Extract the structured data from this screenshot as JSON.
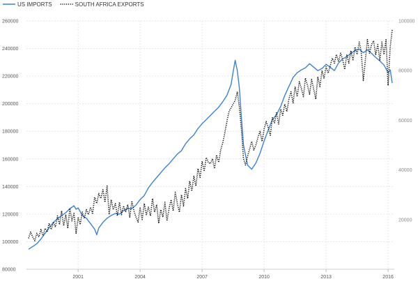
{
  "chart_data": {
    "type": "line",
    "legend_position": "top-left",
    "grid": true,
    "colors": {
      "us_imports": "#3b82d6",
      "sa_exports": "#111111",
      "grid": "#e6e6e6"
    },
    "x_range": [
      1998.5,
      2016.3
    ],
    "x_ticks": [
      {
        "label": "2001",
        "x": 2001
      },
      {
        "label": "2004",
        "x": 2004
      },
      {
        "label": "2007",
        "x": 2007
      },
      {
        "label": "2010",
        "x": 2010
      },
      {
        "label": "2013",
        "x": 2013
      },
      {
        "label": "2016",
        "x": 2016
      }
    ],
    "y_left": {
      "range": [
        80000,
        260000
      ],
      "ticks": [
        80000,
        100000,
        120000,
        140000,
        160000,
        180000,
        200000,
        220000,
        240000,
        260000
      ]
    },
    "y_right": {
      "range": [
        0,
        100000
      ],
      "ticks": [
        20000,
        40000,
        60000,
        80000,
        100000
      ]
    },
    "series": [
      {
        "name": "US IMPORTS",
        "axis": "left",
        "style": "solid",
        "points": [
          [
            1998.6,
            94500
          ],
          [
            1998.8,
            96500
          ],
          [
            1999.0,
            98500
          ],
          [
            1999.2,
            102000
          ],
          [
            1999.4,
            106000
          ],
          [
            1999.6,
            110000
          ],
          [
            1999.8,
            114000
          ],
          [
            2000.0,
            116500
          ],
          [
            2000.2,
            119000
          ],
          [
            2000.4,
            121000
          ],
          [
            2000.6,
            124000
          ],
          [
            2000.8,
            126000
          ],
          [
            2000.9,
            123500
          ],
          [
            2001.0,
            124500
          ],
          [
            2001.2,
            119000
          ],
          [
            2001.4,
            117000
          ],
          [
            2001.6,
            113000
          ],
          [
            2001.8,
            109000
          ],
          [
            2001.9,
            105000
          ],
          [
            2002.0,
            110000
          ],
          [
            2002.2,
            114000
          ],
          [
            2002.4,
            117000
          ],
          [
            2002.6,
            119000
          ],
          [
            2002.8,
            120500
          ],
          [
            2003.0,
            120000
          ],
          [
            2003.2,
            122500
          ],
          [
            2003.4,
            124000
          ],
          [
            2003.6,
            124000
          ],
          [
            2003.8,
            126500
          ],
          [
            2004.0,
            130500
          ],
          [
            2004.2,
            133500
          ],
          [
            2004.4,
            139000
          ],
          [
            2004.6,
            143000
          ],
          [
            2004.8,
            146500
          ],
          [
            2005.0,
            150000
          ],
          [
            2005.2,
            153500
          ],
          [
            2005.4,
            156500
          ],
          [
            2005.6,
            160000
          ],
          [
            2005.8,
            163500
          ],
          [
            2006.0,
            166000
          ],
          [
            2006.2,
            171000
          ],
          [
            2006.4,
            174500
          ],
          [
            2006.6,
            177500
          ],
          [
            2006.8,
            182000
          ],
          [
            2007.0,
            185500
          ],
          [
            2007.2,
            188500
          ],
          [
            2007.4,
            191500
          ],
          [
            2007.6,
            194500
          ],
          [
            2007.8,
            197500
          ],
          [
            2008.0,
            201500
          ],
          [
            2008.2,
            206000
          ],
          [
            2008.4,
            214000
          ],
          [
            2008.5,
            223000
          ],
          [
            2008.6,
            231500
          ],
          [
            2008.7,
            224000
          ],
          [
            2008.8,
            212000
          ],
          [
            2008.9,
            190000
          ],
          [
            2009.0,
            170000
          ],
          [
            2009.2,
            155500
          ],
          [
            2009.4,
            152500
          ],
          [
            2009.6,
            157000
          ],
          [
            2009.8,
            164000
          ],
          [
            2010.0,
            173000
          ],
          [
            2010.2,
            181000
          ],
          [
            2010.4,
            188500
          ],
          [
            2010.6,
            192000
          ],
          [
            2010.8,
            198000
          ],
          [
            2011.0,
            206000
          ],
          [
            2011.2,
            212500
          ],
          [
            2011.4,
            219000
          ],
          [
            2011.6,
            222500
          ],
          [
            2011.8,
            224500
          ],
          [
            2012.0,
            226000
          ],
          [
            2012.2,
            229000
          ],
          [
            2012.4,
            226500
          ],
          [
            2012.6,
            224000
          ],
          [
            2012.8,
            225500
          ],
          [
            2013.0,
            228500
          ],
          [
            2013.2,
            226500
          ],
          [
            2013.4,
            224000
          ],
          [
            2013.6,
            229500
          ],
          [
            2013.8,
            232500
          ],
          [
            2014.0,
            234000
          ],
          [
            2014.2,
            236500
          ],
          [
            2014.4,
            238500
          ],
          [
            2014.6,
            239500
          ],
          [
            2014.8,
            237000
          ],
          [
            2015.0,
            239000
          ],
          [
            2015.2,
            236500
          ],
          [
            2015.4,
            233500
          ],
          [
            2015.6,
            231000
          ],
          [
            2015.8,
            228000
          ],
          [
            2016.0,
            222500
          ],
          [
            2016.1,
            224500
          ],
          [
            2016.2,
            215000
          ]
        ]
      },
      {
        "name": "SOUTH AFRICA EXPORTS",
        "axis": "right",
        "style": "dotted",
        "points": [
          [
            1998.6,
            12500
          ],
          [
            1998.7,
            15000
          ],
          [
            1998.8,
            13000
          ],
          [
            1998.9,
            11500
          ],
          [
            1999.0,
            14500
          ],
          [
            1999.1,
            13000
          ],
          [
            1999.2,
            16000
          ],
          [
            1999.3,
            13500
          ],
          [
            1999.4,
            16500
          ],
          [
            1999.5,
            15000
          ],
          [
            1999.6,
            18500
          ],
          [
            1999.7,
            16000
          ],
          [
            1999.8,
            19000
          ],
          [
            1999.9,
            17000
          ],
          [
            2000.0,
            21500
          ],
          [
            2000.1,
            18000
          ],
          [
            2000.2,
            23500
          ],
          [
            2000.3,
            17500
          ],
          [
            2000.4,
            22000
          ],
          [
            2000.5,
            16500
          ],
          [
            2000.6,
            24500
          ],
          [
            2000.7,
            19500
          ],
          [
            2000.8,
            22500
          ],
          [
            2000.9,
            14500
          ],
          [
            2001.0,
            21000
          ],
          [
            2001.1,
            18000
          ],
          [
            2001.2,
            23000
          ],
          [
            2001.3,
            20500
          ],
          [
            2001.4,
            24000
          ],
          [
            2001.5,
            22000
          ],
          [
            2001.6,
            25000
          ],
          [
            2001.7,
            22500
          ],
          [
            2001.8,
            29000
          ],
          [
            2001.9,
            26500
          ],
          [
            2002.0,
            30500
          ],
          [
            2002.1,
            28500
          ],
          [
            2002.2,
            32000
          ],
          [
            2002.3,
            27000
          ],
          [
            2002.4,
            33500
          ],
          [
            2002.5,
            22000
          ],
          [
            2002.6,
            28000
          ],
          [
            2002.7,
            24000
          ],
          [
            2002.8,
            26500
          ],
          [
            2002.9,
            21500
          ],
          [
            2003.0,
            27000
          ],
          [
            2003.1,
            22000
          ],
          [
            2003.2,
            25500
          ],
          [
            2003.3,
            23000
          ],
          [
            2003.4,
            26000
          ],
          [
            2003.5,
            21000
          ],
          [
            2003.6,
            27500
          ],
          [
            2003.7,
            23500
          ],
          [
            2003.8,
            21000
          ],
          [
            2003.9,
            19000
          ],
          [
            2004.0,
            25000
          ],
          [
            2004.1,
            20000
          ],
          [
            2004.2,
            26500
          ],
          [
            2004.3,
            22000
          ],
          [
            2004.4,
            25000
          ],
          [
            2004.5,
            21500
          ],
          [
            2004.6,
            28500
          ],
          [
            2004.7,
            23000
          ],
          [
            2004.8,
            26000
          ],
          [
            2004.9,
            18500
          ],
          [
            2005.0,
            24000
          ],
          [
            2005.1,
            21000
          ],
          [
            2005.2,
            27000
          ],
          [
            2005.3,
            19500
          ],
          [
            2005.4,
            24500
          ],
          [
            2005.5,
            28000
          ],
          [
            2005.6,
            23500
          ],
          [
            2005.7,
            31000
          ],
          [
            2005.8,
            26500
          ],
          [
            2005.9,
            23000
          ],
          [
            2006.0,
            30000
          ],
          [
            2006.1,
            25500
          ],
          [
            2006.2,
            32500
          ],
          [
            2006.3,
            28500
          ],
          [
            2006.4,
            35500
          ],
          [
            2006.5,
            31500
          ],
          [
            2006.6,
            37500
          ],
          [
            2006.7,
            33500
          ],
          [
            2006.8,
            40500
          ],
          [
            2006.9,
            37000
          ],
          [
            2007.0,
            43500
          ],
          [
            2007.1,
            39500
          ],
          [
            2007.2,
            45000
          ],
          [
            2007.3,
            43000
          ],
          [
            2007.4,
            42500
          ],
          [
            2007.5,
            44500
          ],
          [
            2007.6,
            40500
          ],
          [
            2007.7,
            46000
          ],
          [
            2007.8,
            43000
          ],
          [
            2007.9,
            48000
          ],
          [
            2008.0,
            51000
          ],
          [
            2008.1,
            55000
          ],
          [
            2008.2,
            59500
          ],
          [
            2008.3,
            63500
          ],
          [
            2008.4,
            65000
          ],
          [
            2008.5,
            66500
          ],
          [
            2008.6,
            68000
          ],
          [
            2008.7,
            71500
          ],
          [
            2008.8,
            65500
          ],
          [
            2008.9,
            56500
          ],
          [
            2009.0,
            44500
          ],
          [
            2009.1,
            42000
          ],
          [
            2009.2,
            45500
          ],
          [
            2009.3,
            48500
          ],
          [
            2009.4,
            51500
          ],
          [
            2009.5,
            48000
          ],
          [
            2009.6,
            50000
          ],
          [
            2009.7,
            53000
          ],
          [
            2009.8,
            55500
          ],
          [
            2009.9,
            51500
          ],
          [
            2010.0,
            56500
          ],
          [
            2010.1,
            59500
          ],
          [
            2010.2,
            57000
          ],
          [
            2010.3,
            54000
          ],
          [
            2010.4,
            61000
          ],
          [
            2010.5,
            59000
          ],
          [
            2010.6,
            63000
          ],
          [
            2010.7,
            58500
          ],
          [
            2010.8,
            64500
          ],
          [
            2010.9,
            62000
          ],
          [
            2011.0,
            66500
          ],
          [
            2011.1,
            63500
          ],
          [
            2011.2,
            68500
          ],
          [
            2011.3,
            71500
          ],
          [
            2011.4,
            67000
          ],
          [
            2011.5,
            73500
          ],
          [
            2011.6,
            69500
          ],
          [
            2011.7,
            75500
          ],
          [
            2011.8,
            73000
          ],
          [
            2011.9,
            69500
          ],
          [
            2012.0,
            77000
          ],
          [
            2012.1,
            74000
          ],
          [
            2012.2,
            70500
          ],
          [
            2012.3,
            76500
          ],
          [
            2012.4,
            72500
          ],
          [
            2012.5,
            68500
          ],
          [
            2012.6,
            77500
          ],
          [
            2012.7,
            73500
          ],
          [
            2012.8,
            80000
          ],
          [
            2012.9,
            77000
          ],
          [
            2013.0,
            81500
          ],
          [
            2013.1,
            79000
          ],
          [
            2013.2,
            82000
          ],
          [
            2013.3,
            85000
          ],
          [
            2013.4,
            83000
          ],
          [
            2013.5,
            86500
          ],
          [
            2013.6,
            83500
          ],
          [
            2013.7,
            87000
          ],
          [
            2013.8,
            84500
          ],
          [
            2013.9,
            80500
          ],
          [
            2014.0,
            86500
          ],
          [
            2014.1,
            83000
          ],
          [
            2014.2,
            88000
          ],
          [
            2014.3,
            84000
          ],
          [
            2014.4,
            89500
          ],
          [
            2014.5,
            86500
          ],
          [
            2014.6,
            91500
          ],
          [
            2014.7,
            87500
          ],
          [
            2014.8,
            76000
          ],
          [
            2014.9,
            84500
          ],
          [
            2015.0,
            92500
          ],
          [
            2015.1,
            87000
          ],
          [
            2015.2,
            90500
          ],
          [
            2015.3,
            92000
          ],
          [
            2015.4,
            86500
          ],
          [
            2015.5,
            90500
          ],
          [
            2015.6,
            84000
          ],
          [
            2015.7,
            91500
          ],
          [
            2015.8,
            86500
          ],
          [
            2015.9,
            92500
          ],
          [
            2016.0,
            74000
          ],
          [
            2016.1,
            89500
          ],
          [
            2016.2,
            96500
          ]
        ]
      }
    ]
  }
}
